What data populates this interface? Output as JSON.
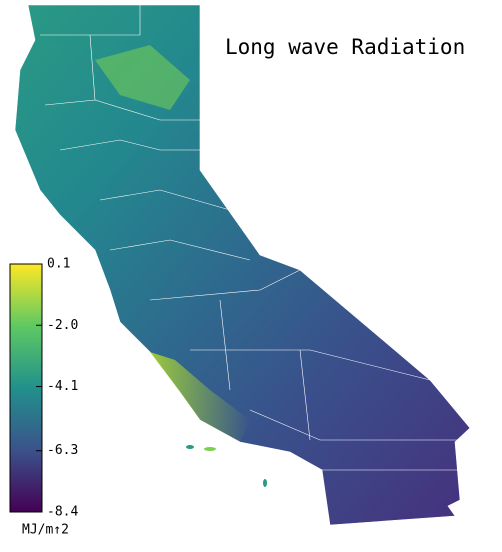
{
  "title": "Long wave Radiation",
  "colorbar": {
    "label": "MJ/m↑2",
    "lim": [
      -8.4,
      0.1
    ],
    "ticks": [
      0.1,
      {
        "value": -2,
        "label": "-2.0"
      },
      -4.1,
      -6.3,
      -8.4
    ],
    "colors": [
      "#440154",
      "#3b528b",
      "#21918c",
      "#5ec962",
      "#fde725"
    ]
  }
}
